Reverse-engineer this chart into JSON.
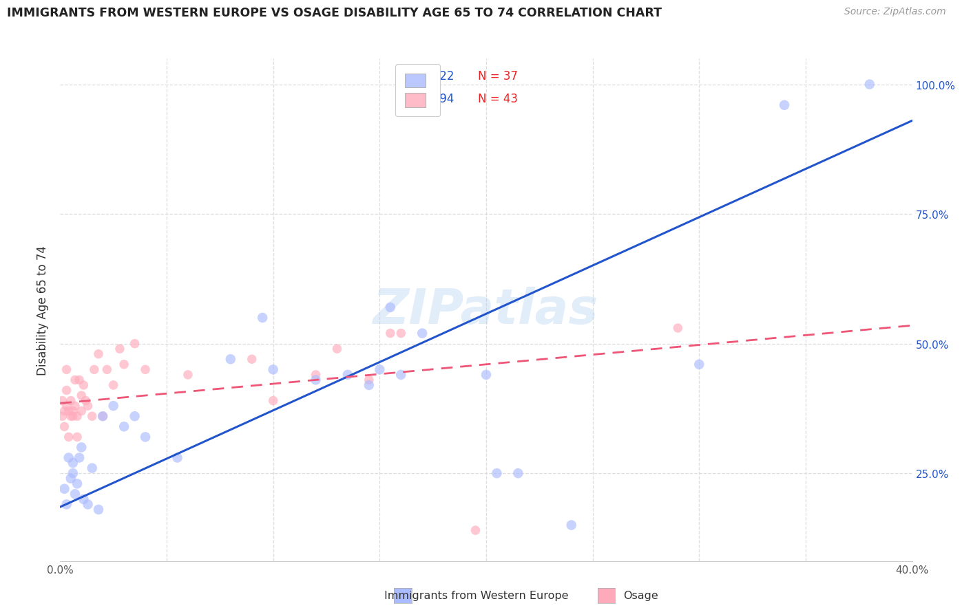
{
  "title": "IMMIGRANTS FROM WESTERN EUROPE VS OSAGE DISABILITY AGE 65 TO 74 CORRELATION CHART",
  "source": "Source: ZipAtlas.com",
  "xlabel_blue": "Immigrants from Western Europe",
  "xlabel_pink": "Osage",
  "ylabel": "Disability Age 65 to 74",
  "xlim": [
    0.0,
    0.4
  ],
  "ylim": [
    0.08,
    1.05
  ],
  "R_blue": 0.622,
  "N_blue": 37,
  "R_pink": 0.294,
  "N_pink": 43,
  "blue_color": "#aabbff",
  "pink_color": "#ffaabb",
  "blue_line_color": "#2255cc",
  "pink_line_color": "#ee5577",
  "watermark_text": "ZIPatlas",
  "watermark_color": "#aaccee",
  "blue_scatter_x": [
    0.002,
    0.003,
    0.004,
    0.005,
    0.006,
    0.006,
    0.007,
    0.008,
    0.009,
    0.01,
    0.011,
    0.013,
    0.015,
    0.018,
    0.02,
    0.025,
    0.03,
    0.035,
    0.04,
    0.055,
    0.08,
    0.095,
    0.1,
    0.12,
    0.135,
    0.145,
    0.15,
    0.155,
    0.16,
    0.17,
    0.2,
    0.205,
    0.215,
    0.24,
    0.3,
    0.34,
    0.38
  ],
  "blue_scatter_y": [
    0.22,
    0.19,
    0.28,
    0.24,
    0.25,
    0.27,
    0.21,
    0.23,
    0.28,
    0.3,
    0.2,
    0.19,
    0.26,
    0.18,
    0.36,
    0.38,
    0.34,
    0.36,
    0.32,
    0.28,
    0.47,
    0.55,
    0.45,
    0.43,
    0.44,
    0.42,
    0.45,
    0.57,
    0.44,
    0.52,
    0.44,
    0.25,
    0.25,
    0.15,
    0.46,
    0.96,
    1.0
  ],
  "pink_scatter_x": [
    0.001,
    0.001,
    0.002,
    0.002,
    0.003,
    0.003,
    0.003,
    0.004,
    0.004,
    0.005,
    0.005,
    0.006,
    0.006,
    0.007,
    0.007,
    0.008,
    0.008,
    0.009,
    0.01,
    0.01,
    0.011,
    0.012,
    0.013,
    0.015,
    0.016,
    0.018,
    0.02,
    0.022,
    0.025,
    0.028,
    0.03,
    0.035,
    0.04,
    0.06,
    0.09,
    0.1,
    0.12,
    0.13,
    0.145,
    0.155,
    0.16,
    0.195,
    0.29
  ],
  "pink_scatter_y": [
    0.39,
    0.36,
    0.34,
    0.37,
    0.41,
    0.38,
    0.45,
    0.37,
    0.32,
    0.36,
    0.39,
    0.37,
    0.36,
    0.43,
    0.38,
    0.36,
    0.32,
    0.43,
    0.4,
    0.37,
    0.42,
    0.39,
    0.38,
    0.36,
    0.45,
    0.48,
    0.36,
    0.45,
    0.42,
    0.49,
    0.46,
    0.5,
    0.45,
    0.44,
    0.47,
    0.39,
    0.44,
    0.49,
    0.43,
    0.52,
    0.52,
    0.14,
    0.53
  ],
  "blue_line_x0": 0.0,
  "blue_line_y0": 0.185,
  "blue_line_x1": 0.4,
  "blue_line_y1": 0.93,
  "pink_line_x0": 0.0,
  "pink_line_y0": 0.385,
  "pink_line_x1": 0.4,
  "pink_line_y1": 0.535,
  "grid_color": "#dddddd",
  "background": "#ffffff",
  "blue_size": 110,
  "pink_size": 95
}
